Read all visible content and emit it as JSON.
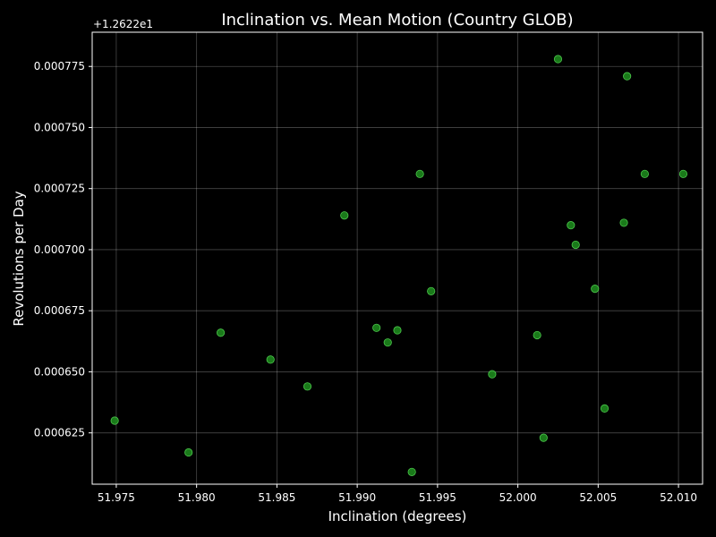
{
  "chart_data": {
    "type": "scatter",
    "title": "Inclination vs. Mean Motion (Country GLOB)",
    "xlabel": "Inclination (degrees)",
    "ylabel": "Revolutions per Day",
    "y_offset_label": "+1.2622e1",
    "xlim": [
      51.9735,
      52.0115
    ],
    "ylim": [
      0.000604,
      0.000789
    ],
    "x_ticks": [
      51.975,
      51.98,
      51.985,
      51.99,
      51.995,
      52.0,
      52.005,
      52.01
    ],
    "x_tick_labels": [
      "51.975",
      "51.980",
      "51.985",
      "51.990",
      "51.995",
      "52.000",
      "52.005",
      "52.010"
    ],
    "y_ticks": [
      0.000625,
      0.00065,
      0.000675,
      0.0007,
      0.000725,
      0.00075,
      0.000775
    ],
    "y_tick_labels": [
      "0.000625",
      "0.000650",
      "0.000675",
      "0.000700",
      "0.000725",
      "0.000750",
      "0.000775"
    ],
    "grid": true,
    "colors": {
      "background": "#000000",
      "point_fill": "#1f8f1f",
      "point_edge": "#66ff66",
      "text": "#ffffff"
    },
    "x": [
      51.9749,
      51.9795,
      51.9815,
      51.9846,
      51.9869,
      51.9892,
      51.9912,
      51.9919,
      51.9925,
      51.9934,
      51.9939,
      51.9946,
      51.9984,
      52.0012,
      52.0016,
      52.0025,
      52.0033,
      52.0036,
      52.0048,
      52.0054,
      52.0066,
      52.0068,
      52.0079,
      52.0103
    ],
    "y": [
      0.00063,
      0.000617,
      0.000666,
      0.000655,
      0.000644,
      0.000714,
      0.000668,
      0.000662,
      0.000667,
      0.000609,
      0.000731,
      0.000683,
      0.000649,
      0.000665,
      0.000623,
      0.000778,
      0.00071,
      0.000702,
      0.000684,
      0.000635,
      0.000711,
      0.000771,
      0.000731,
      0.000731
    ]
  }
}
